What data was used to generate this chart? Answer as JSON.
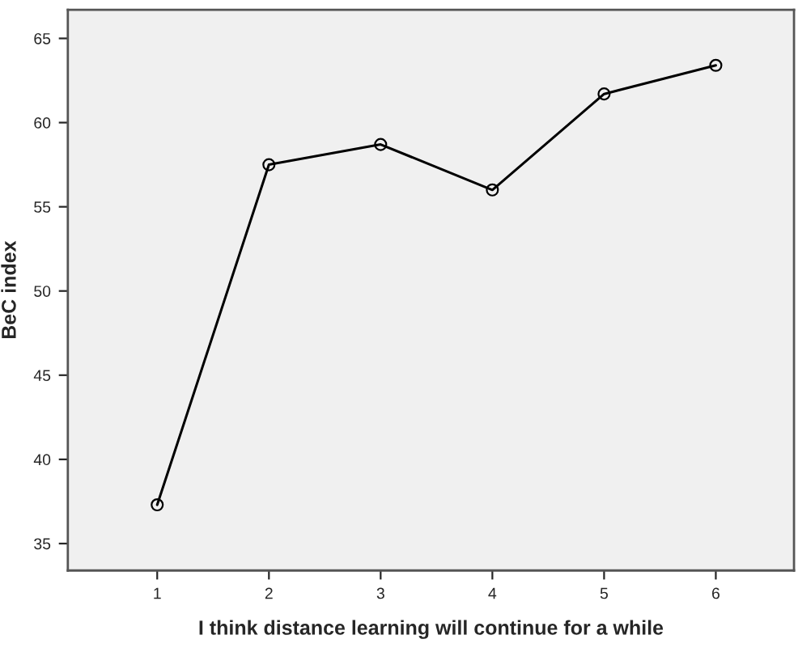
{
  "chart_data": {
    "type": "line",
    "xlabel": "I think distance learning will continue for a while",
    "ylabel": "BeC index",
    "x": [
      1,
      2,
      3,
      4,
      5,
      6
    ],
    "series": [
      {
        "color": "#000000",
        "values": [
          37.3,
          57.5,
          58.7,
          56.0,
          61.7,
          63.4
        ]
      }
    ],
    "xlim": [
      0.2,
      6.7
    ],
    "xticks": [
      1,
      2,
      3,
      4,
      5,
      6
    ],
    "ylim": [
      33.4,
      66.7
    ],
    "yticks": [
      35,
      40,
      45,
      50,
      55,
      60,
      65
    ],
    "grid": false,
    "marker": "circle",
    "line_style": "solid"
  }
}
